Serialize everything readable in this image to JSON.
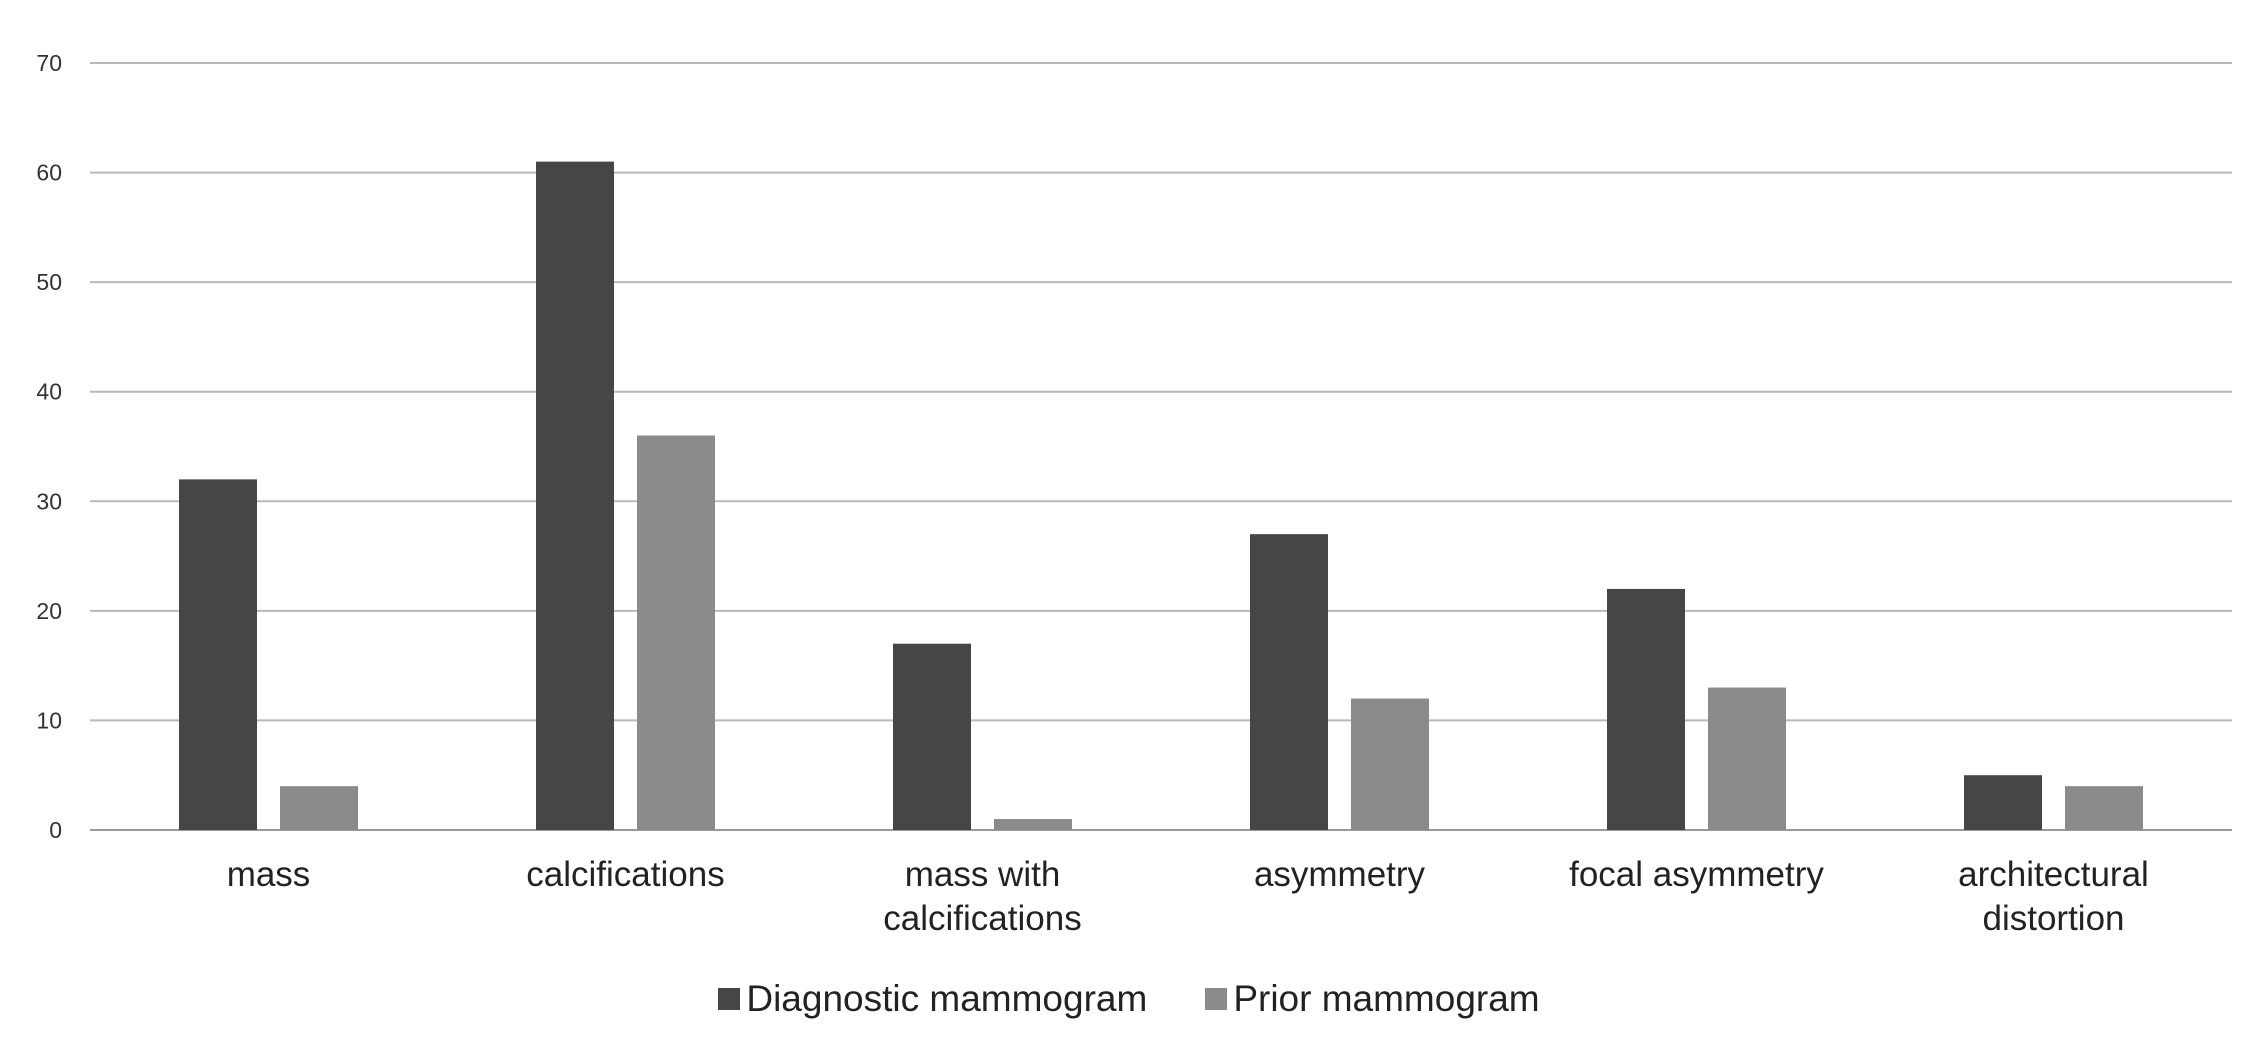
{
  "chart_data": {
    "type": "bar",
    "title": "",
    "xlabel": "",
    "ylabel": "",
    "ylim": [
      0,
      70
    ],
    "yticks": [
      0,
      10,
      20,
      30,
      40,
      50,
      60,
      70
    ],
    "grid": true,
    "legend_position": "bottom-center",
    "categories": [
      [
        "mass"
      ],
      [
        "calcifications"
      ],
      [
        "mass with",
        "calcifications"
      ],
      [
        "asymmetry"
      ],
      [
        "focal asymmetry"
      ],
      [
        "architectural",
        "distortion"
      ]
    ],
    "series": [
      {
        "name": "Diagnostic mammogram",
        "color": "#464646",
        "values": [
          32,
          61,
          17,
          27,
          22,
          5
        ]
      },
      {
        "name": "Prior mammogram",
        "color": "#8a8a8a",
        "values": [
          4,
          36,
          1,
          12,
          13,
          4
        ]
      }
    ]
  },
  "colors": {
    "gridline": "#b9b9b9",
    "axis": "#9a9a9a",
    "tick_text": "#333333",
    "category_text": "#222222"
  }
}
